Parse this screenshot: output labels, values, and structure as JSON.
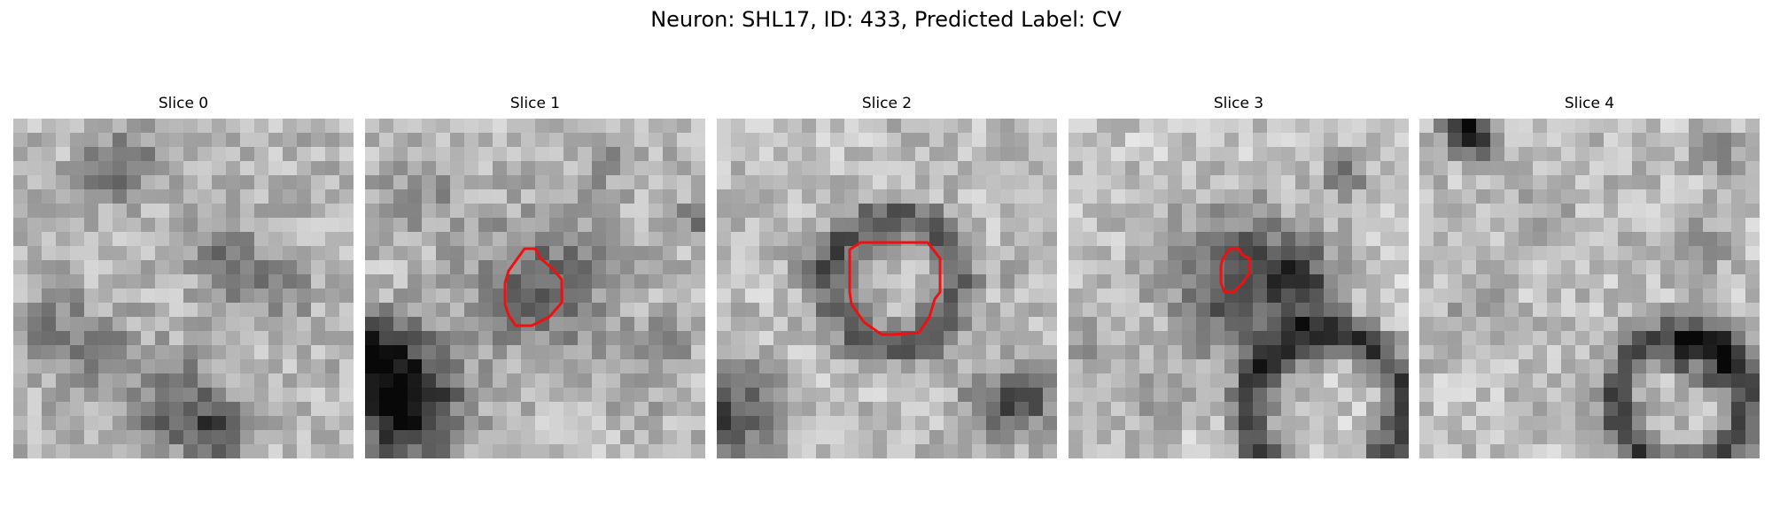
{
  "figure": {
    "title": "Neuron: SHL17, ID: 433, Predicted Label: CV"
  },
  "colors": {
    "contour": "#ee1111",
    "background": "#ffffff"
  },
  "panels": [
    {
      "title": "Slice 0"
    },
    {
      "title": "Slice 1"
    },
    {
      "title": "Slice 2"
    },
    {
      "title": "Slice 3"
    },
    {
      "title": "Slice 4"
    }
  ]
}
